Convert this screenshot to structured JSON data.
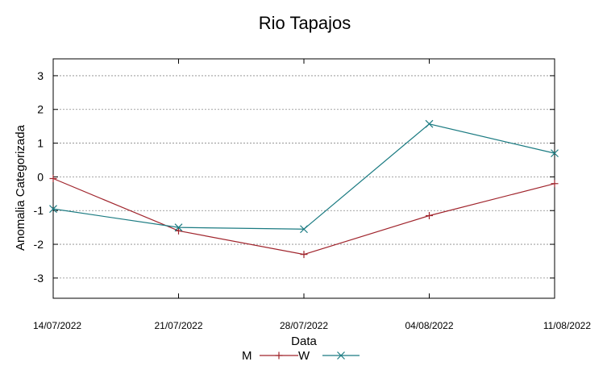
{
  "chart_data": {
    "type": "line",
    "title": "Rio Tapajos",
    "xlabel": "Data",
    "ylabel": "Anomalia Categorizada",
    "categories": [
      "14/07/2022",
      "21/07/2022",
      "28/07/2022",
      "04/08/2022",
      "11/08/2022"
    ],
    "yticks": [
      "3",
      "2",
      "1",
      "0",
      "-1",
      "-2",
      "-3"
    ],
    "ylim": [
      -3.6,
      3.5
    ],
    "grid": true,
    "legend_position": "bottom-center",
    "series": [
      {
        "name": "M",
        "color": "#a0242c",
        "marker": "plus",
        "values": [
          -0.05,
          -1.6,
          -2.3,
          -1.15,
          -0.2
        ]
      },
      {
        "name": "W",
        "color": "#1b7b82",
        "marker": "cross",
        "values": [
          -0.95,
          -1.5,
          -1.55,
          1.57,
          0.7
        ]
      }
    ]
  }
}
